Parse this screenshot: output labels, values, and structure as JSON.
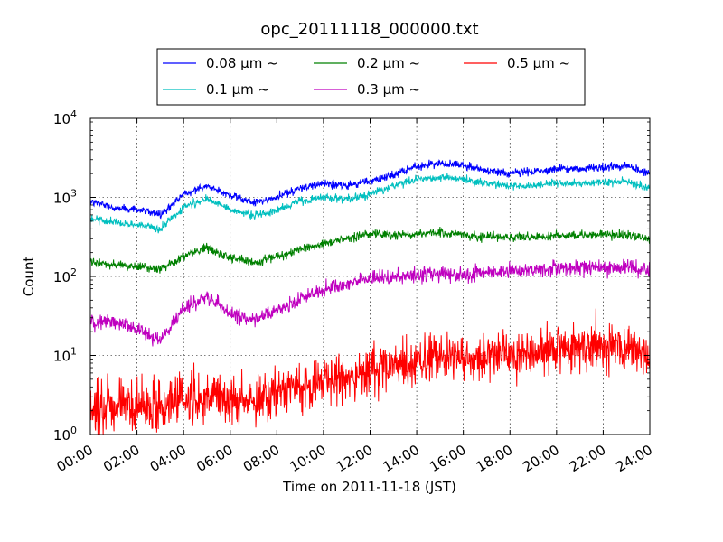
{
  "chart_data": {
    "type": "line",
    "title": "opc_20111118_000000.txt",
    "xlabel": "Time on 2011-11-18 (JST)",
    "ylabel": "Count",
    "yscale": "log",
    "xlim": [
      0,
      24
    ],
    "ylim": [
      1,
      10000
    ],
    "grid": true,
    "legend_position": "top-center",
    "x_ticks": [
      "00:00",
      "02:00",
      "04:00",
      "06:00",
      "08:00",
      "10:00",
      "12:00",
      "14:00",
      "16:00",
      "18:00",
      "20:00",
      "22:00",
      "24:00"
    ],
    "y_ticks": [
      {
        "base": "10",
        "exp": "0"
      },
      {
        "base": "10",
        "exp": "1"
      },
      {
        "base": "10",
        "exp": "2"
      },
      {
        "base": "10",
        "exp": "3"
      },
      {
        "base": "10",
        "exp": "4"
      }
    ],
    "x": [
      0,
      1,
      2,
      3,
      4,
      5,
      6,
      7,
      8,
      9,
      10,
      11,
      12,
      13,
      14,
      15,
      16,
      17,
      18,
      19,
      20,
      21,
      22,
      23,
      24
    ],
    "series": [
      {
        "name": "0.08 μm ~",
        "color": "#0000ff",
        "noise": 0.035,
        "values": [
          900,
          750,
          700,
          600,
          1100,
          1400,
          1050,
          850,
          1000,
          1300,
          1500,
          1400,
          1600,
          1900,
          2500,
          2700,
          2500,
          2200,
          2000,
          2100,
          2300,
          2300,
          2400,
          2500,
          2000
        ]
      },
      {
        "name": "0.1 μm ~",
        "color": "#00bfbf",
        "noise": 0.035,
        "values": [
          550,
          480,
          450,
          400,
          750,
          950,
          700,
          580,
          680,
          900,
          1000,
          950,
          1100,
          1400,
          1700,
          1800,
          1700,
          1500,
          1400,
          1400,
          1500,
          1500,
          1550,
          1600,
          1300
        ]
      },
      {
        "name": "0.2 μm ~",
        "color": "#008000",
        "noise": 0.04,
        "values": [
          150,
          140,
          135,
          120,
          180,
          230,
          170,
          150,
          180,
          220,
          260,
          300,
          340,
          330,
          350,
          360,
          330,
          320,
          310,
          320,
          330,
          330,
          340,
          340,
          300
        ]
      },
      {
        "name": "0.3 μm ~",
        "color": "#bf00bf",
        "noise": 0.07,
        "values": [
          25,
          27,
          22,
          15,
          40,
          55,
          35,
          28,
          38,
          50,
          70,
          80,
          100,
          95,
          105,
          110,
          105,
          110,
          115,
          120,
          125,
          130,
          130,
          130,
          120
        ]
      },
      {
        "name": "0.5 μm ~",
        "color": "#ff0000",
        "noise": 0.22,
        "values": [
          2,
          2.2,
          2.3,
          2.2,
          2.8,
          3,
          2.8,
          2.8,
          3.3,
          4,
          5,
          5.5,
          6.5,
          7.5,
          8.5,
          9,
          9.5,
          10,
          10.5,
          11,
          12,
          13,
          13,
          12.5,
          11
        ]
      }
    ]
  }
}
